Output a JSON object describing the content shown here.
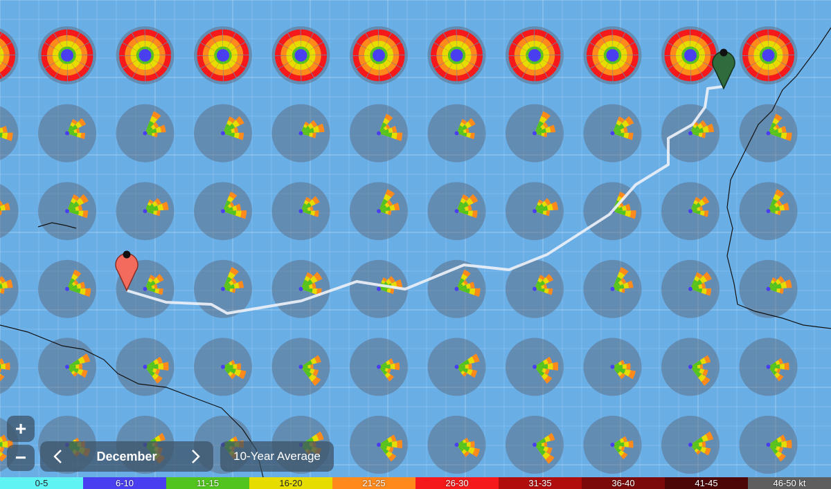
{
  "controls": {
    "zoom_in": "+",
    "zoom_out": "−",
    "month": "December",
    "mode": "10-Year Average"
  },
  "legend": {
    "items": [
      {
        "label": "0-5",
        "color": "#5ff3f3"
      },
      {
        "label": "6-10",
        "color": "#4a3ff0"
      },
      {
        "label": "11-15",
        "color": "#52c41f"
      },
      {
        "label": "16-20",
        "color": "#e6dc00"
      },
      {
        "label": "21-25",
        "color": "#ff8a1c"
      },
      {
        "label": "26-30",
        "color": "#f5191b"
      },
      {
        "label": "31-35",
        "color": "#b10d0d"
      },
      {
        "label": "36-40",
        "color": "#7d0a0a"
      },
      {
        "label": "41-45",
        "color": "#4e0707"
      },
      {
        "label": "46-50 kt",
        "color": "#5e5e5e"
      }
    ]
  }
}
